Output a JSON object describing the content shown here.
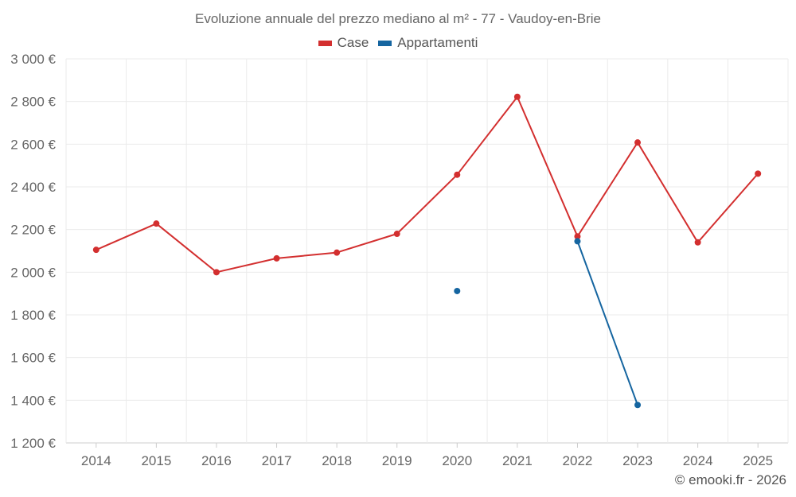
{
  "chart_data": {
    "type": "line",
    "title": "Evoluzione annuale del prezzo mediano al m² - 77 - Vaudoy-en-Brie",
    "x": [
      "2014",
      "2015",
      "2016",
      "2017",
      "2018",
      "2019",
      "2020",
      "2021",
      "2022",
      "2023",
      "2024",
      "2025"
    ],
    "y_ticks": [
      1200,
      1400,
      1600,
      1800,
      2000,
      2200,
      2400,
      2600,
      2800,
      3000
    ],
    "y_tick_labels": [
      "1 200 €",
      "1 400 €",
      "1 600 €",
      "1 800 €",
      "2 000 €",
      "2 200 €",
      "2 400 €",
      "2 600 €",
      "2 800 €",
      "3 000 €"
    ],
    "ylim": [
      1200,
      3000
    ],
    "grid": true,
    "legend_position": "top-center",
    "series": [
      {
        "name": "Case",
        "color": "#d32f2f",
        "values": [
          2105,
          2228,
          2000,
          2065,
          2092,
          2180,
          2457,
          2822,
          2168,
          2608,
          2140,
          2462
        ]
      },
      {
        "name": "Appartamenti",
        "color": "#1565a0",
        "values": [
          null,
          null,
          null,
          null,
          null,
          null,
          1912,
          null,
          2145,
          1378,
          null,
          null
        ]
      }
    ]
  },
  "credit": "© emooki.fr - 2026"
}
